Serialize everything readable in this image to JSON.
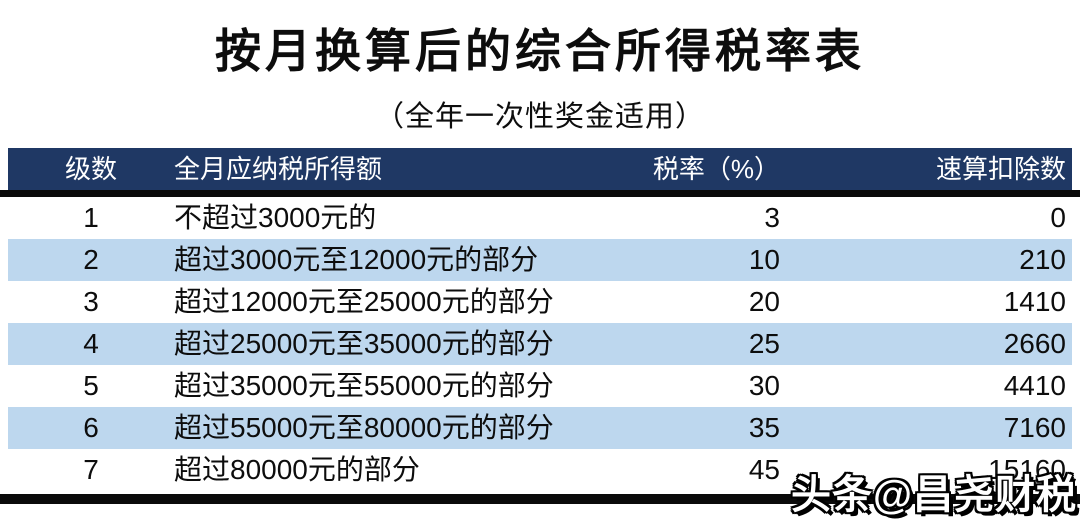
{
  "page": {
    "title": "按月换算后的综合所得税率表",
    "subtitle": "（全年一次性奖金适用）"
  },
  "table": {
    "columns": {
      "level": "级数",
      "income": "全月应纳税所得额",
      "rate": "税率（%）",
      "deduction": "速算扣除数"
    },
    "rows": [
      {
        "level": "1",
        "income": "不超过3000元的",
        "rate": "3",
        "deduction": "0"
      },
      {
        "level": "2",
        "income": "超过3000元至12000元的部分",
        "rate": "10",
        "deduction": "210"
      },
      {
        "level": "3",
        "income": "超过12000元至25000元的部分",
        "rate": "20",
        "deduction": "1410"
      },
      {
        "level": "4",
        "income": "超过25000元至35000元的部分",
        "rate": "25",
        "deduction": "2660"
      },
      {
        "level": "5",
        "income": "超过35000元至55000元的部分",
        "rate": "30",
        "deduction": "4410"
      },
      {
        "level": "6",
        "income": "超过55000元至80000元的部分",
        "rate": "35",
        "deduction": "7160"
      },
      {
        "level": "7",
        "income": "超过80000元的部分",
        "rate": "45",
        "deduction": "15160"
      }
    ]
  },
  "watermark": "头条@昌尧财税",
  "colors": {
    "header_bg": "#1F3864",
    "header_text": "#FFFFFF",
    "stripe_bg": "#BDD7EE",
    "row_bg": "#FFFFFF",
    "rule": "#0A0A0A"
  }
}
